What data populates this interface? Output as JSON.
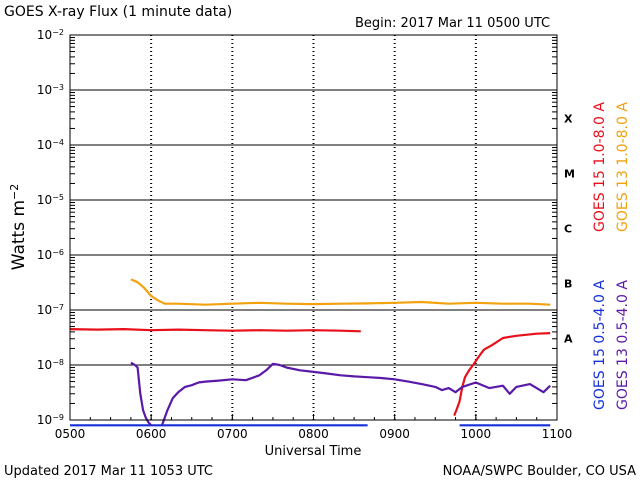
{
  "header": {
    "title": "GOES X-ray Flux (1 minute data)",
    "begin": "Begin: 2017 Mar 11 0500 UTC"
  },
  "footer": {
    "updated": "Updated 2017 Mar 11 1053 UTC",
    "credit": "NOAA/SWPC Boulder, CO USA"
  },
  "chart_data": {
    "type": "line",
    "title": "GOES X-ray Flux (1 minute data)",
    "xlabel": "Universal Time",
    "ylabel": "Watts m⁻²",
    "y_scale": "log",
    "ylim_exponent": [
      -9,
      -2
    ],
    "xlim_minutes_utc": [
      300,
      660
    ],
    "x_tick_labels": [
      "0500",
      "0600",
      "0700",
      "0800",
      "0900",
      "1000",
      "1100"
    ],
    "y_tick_exponents": [
      -9,
      -8,
      -7,
      -6,
      -5,
      -4,
      -3,
      -2
    ],
    "flare_classes": [
      "A",
      "B",
      "C",
      "M",
      "X"
    ],
    "grid": true,
    "colors": {
      "goes15_long": "#e8101a",
      "goes13_long": "#f2a20e",
      "goes15_short": "#1530d8",
      "goes13_short": "#5a1aa8"
    },
    "series": [
      {
        "name": "GOES 15 1.0-8.0 A",
        "color": "#e8101a",
        "segments": [
          {
            "x": [
              300,
              320,
              340,
              360,
              380,
              400,
              420,
              440,
              460,
              480,
              500,
              515
            ],
            "y": [
              4.5e-08,
              4.4e-08,
              4.5e-08,
              4.3e-08,
              4.4e-08,
              4.3e-08,
              4.2e-08,
              4.3e-08,
              4.2e-08,
              4.3e-08,
              4.2e-08,
              4.1e-08
            ]
          },
          {
            "x": [
              584,
              586,
              588,
              590,
              592,
              595,
              598,
              602,
              606,
              612,
              620,
              630,
              645,
              655
            ],
            "y": [
              1.2e-09,
              1.6e-09,
              2.2e-09,
              4e-09,
              6e-09,
              8e-09,
              1e-08,
              1.4e-08,
              1.9e-08,
              2.3e-08,
              3.1e-08,
              3.4e-08,
              3.7e-08,
              3.8e-08
            ]
          }
        ]
      },
      {
        "name": "GOES 13 1.0-8.0 A",
        "color": "#f2a20e",
        "segments": [
          {
            "x": [
              345,
              350,
              355,
              360,
              365,
              370,
              380,
              400,
              420,
              440,
              460,
              480,
              500,
              520,
              540,
              560,
              580,
              600,
              620,
              640,
              655
            ],
            "y": [
              3.6e-07,
              3.2e-07,
              2.5e-07,
              1.8e-07,
              1.5e-07,
              1.3e-07,
              1.3e-07,
              1.25e-07,
              1.3e-07,
              1.35e-07,
              1.3e-07,
              1.28e-07,
              1.3e-07,
              1.32e-07,
              1.35e-07,
              1.4e-07,
              1.3e-07,
              1.35e-07,
              1.3e-07,
              1.3e-07,
              1.25e-07
            ]
          }
        ]
      },
      {
        "name": "GOES 15 0.5-4.0 A",
        "color": "#1530d8",
        "segments": [
          {
            "x": [
              300,
              520
            ],
            "y": [
              8e-10,
              8e-10
            ]
          },
          {
            "x": [
              588,
              655
            ],
            "y": [
              8e-10,
              8e-10
            ]
          }
        ]
      },
      {
        "name": "GOES 13 0.5-4.0 A",
        "color": "#5a1aa8",
        "segments": [
          {
            "x": [
              345,
              348,
              350,
              352,
              354,
              356,
              358,
              360
            ],
            "y": [
              1.1e-08,
              1e-08,
              9e-09,
              3e-09,
              1.5e-09,
              1.1e-09,
              9e-10,
              8e-10
            ]
          },
          {
            "x": [
              368,
              372,
              376,
              380,
              385,
              390,
              395,
              400,
              410,
              420,
              430,
              440,
              445,
              450,
              455,
              460,
              470,
              480,
              490,
              500,
              510,
              520,
              530,
              540,
              550,
              560,
              570,
              575,
              580,
              585,
              590,
              600,
              610,
              620,
              625,
              630,
              640,
              650,
              655
            ],
            "y": [
              8e-10,
              1.5e-09,
              2.5e-09,
              3.2e-09,
              4e-09,
              4.3e-09,
              4.8e-09,
              5e-09,
              5.2e-09,
              5.5e-09,
              5.3e-09,
              6.5e-09,
              8e-09,
              1.05e-08,
              1e-08,
              9e-09,
              8e-09,
              7.5e-09,
              7e-09,
              6.5e-09,
              6.2e-09,
              6e-09,
              5.8e-09,
              5.5e-09,
              5e-09,
              4.5e-09,
              4e-09,
              3.5e-09,
              3.8e-09,
              3.2e-09,
              4e-09,
              4.8e-09,
              3.8e-09,
              4.2e-09,
              3e-09,
              4e-09,
              4.5e-09,
              3.2e-09,
              4.2e-09
            ]
          }
        ]
      }
    ]
  }
}
